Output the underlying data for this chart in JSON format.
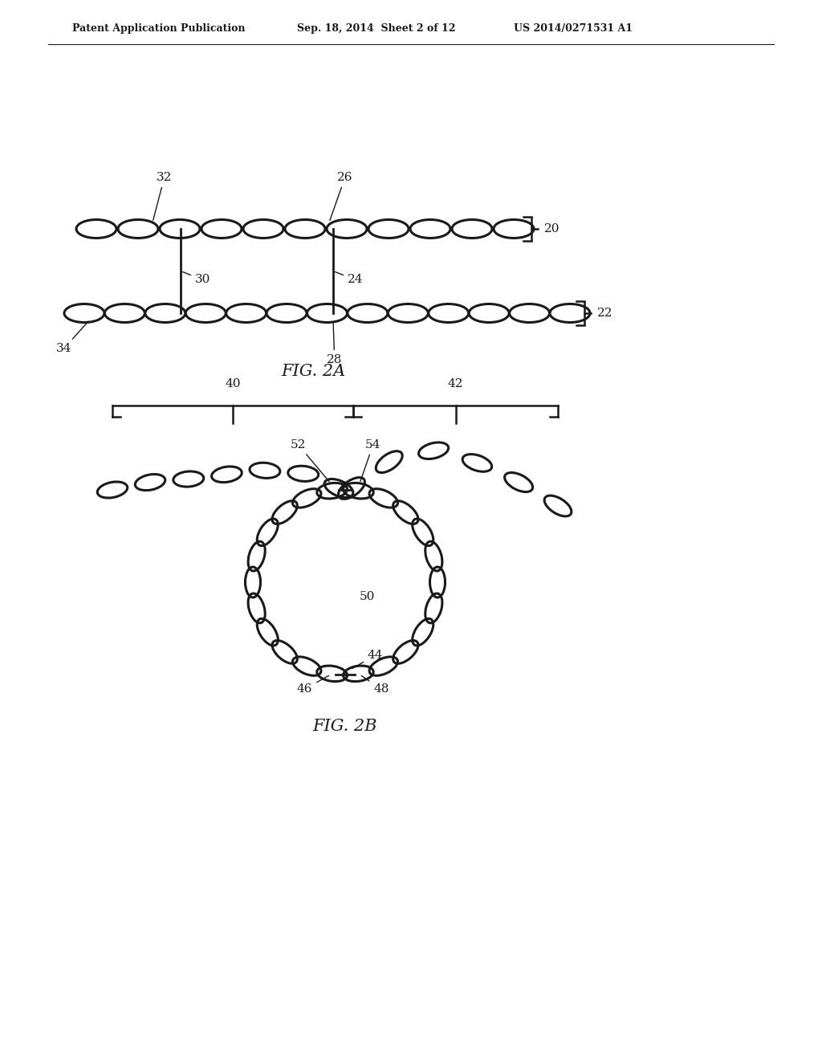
{
  "bg_color": "#ffffff",
  "header_left": "Patent Application Publication",
  "header_mid": "Sep. 18, 2014  Sheet 2 of 12",
  "header_right": "US 2014/0271531 A1",
  "fig2a_caption": "FIG. 2A",
  "fig2b_caption": "FIG. 2B",
  "line_color": "#1a1a1a",
  "ellipse_lw": 2.2,
  "label_fontsize": 11
}
